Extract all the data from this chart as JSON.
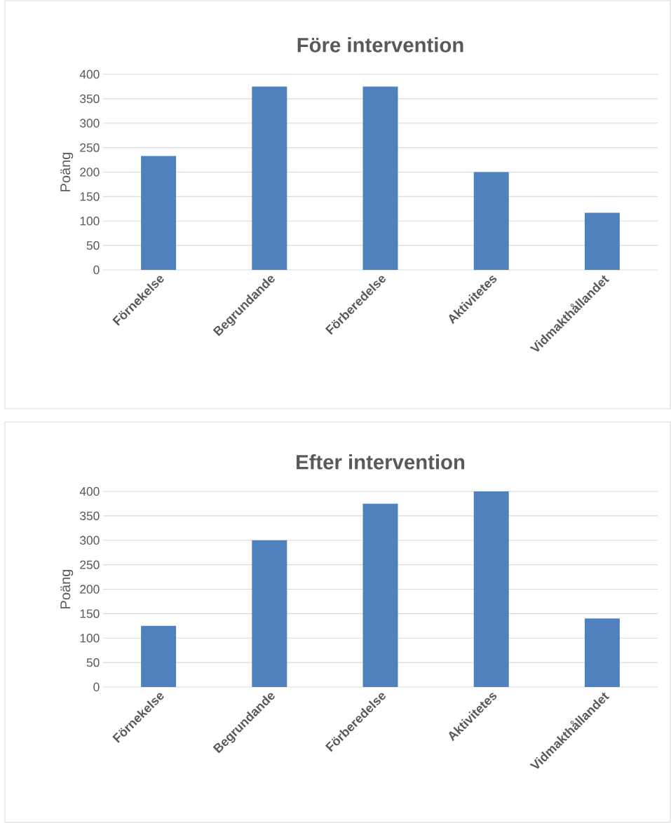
{
  "chart_data": [
    {
      "type": "bar",
      "title": "Före intervention",
      "ylabel": "Poäng",
      "categories": [
        "Förnekelse",
        "Begrundande",
        "Förberedelse",
        "Aktivitetes",
        "Vidmakthållandet"
      ],
      "values": [
        233,
        375,
        375,
        200,
        117
      ],
      "color": "#4f81bd",
      "ylim": [
        0,
        400
      ],
      "yticks": [
        0,
        50,
        100,
        150,
        200,
        250,
        300,
        350,
        400
      ],
      "grid": "y"
    },
    {
      "type": "bar",
      "title": "Efter intervention",
      "ylabel": "Poäng",
      "categories": [
        "Förnekelse",
        "Begrundande",
        "Förberedelse",
        "Aktivitetes",
        "Vidmakthållandet"
      ],
      "values": [
        125,
        300,
        375,
        400,
        140
      ],
      "color": "#4f81bd",
      "ylim": [
        0,
        400
      ],
      "yticks": [
        0,
        50,
        100,
        150,
        200,
        250,
        300,
        350,
        400
      ],
      "grid": "y"
    }
  ]
}
